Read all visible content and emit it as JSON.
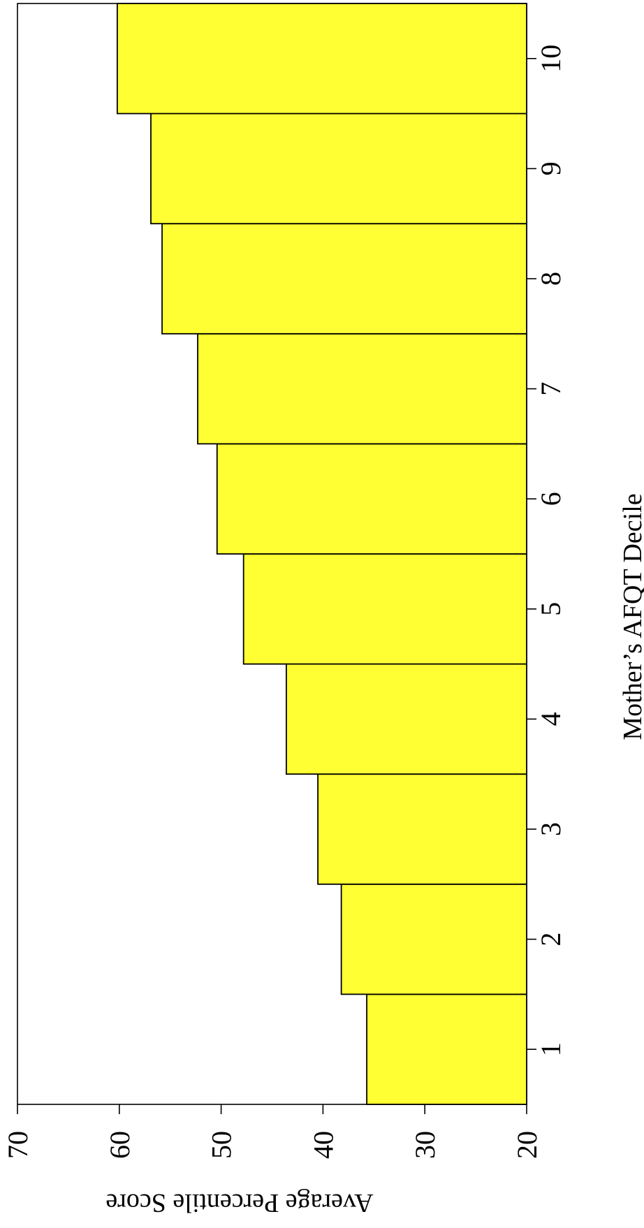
{
  "chart_data": {
    "type": "bar",
    "orientation": "rotated-90-clockwise",
    "categories": [
      "1",
      "2",
      "3",
      "4",
      "5",
      "6",
      "7",
      "8",
      "9",
      "10"
    ],
    "values": [
      35.7,
      38.2,
      40.5,
      43.6,
      47.8,
      50.4,
      52.3,
      55.8,
      56.9,
      60.2
    ],
    "xlabel": "Mother’s AFQT Decile",
    "ylabel": "Average Percentile Score",
    "ylim": [
      20,
      70
    ],
    "yticks": [
      "20",
      "30",
      "40",
      "50",
      "60",
      "70"
    ],
    "bar_color": "#ffff33",
    "bar_edge_color": "#000000",
    "grid": false
  }
}
